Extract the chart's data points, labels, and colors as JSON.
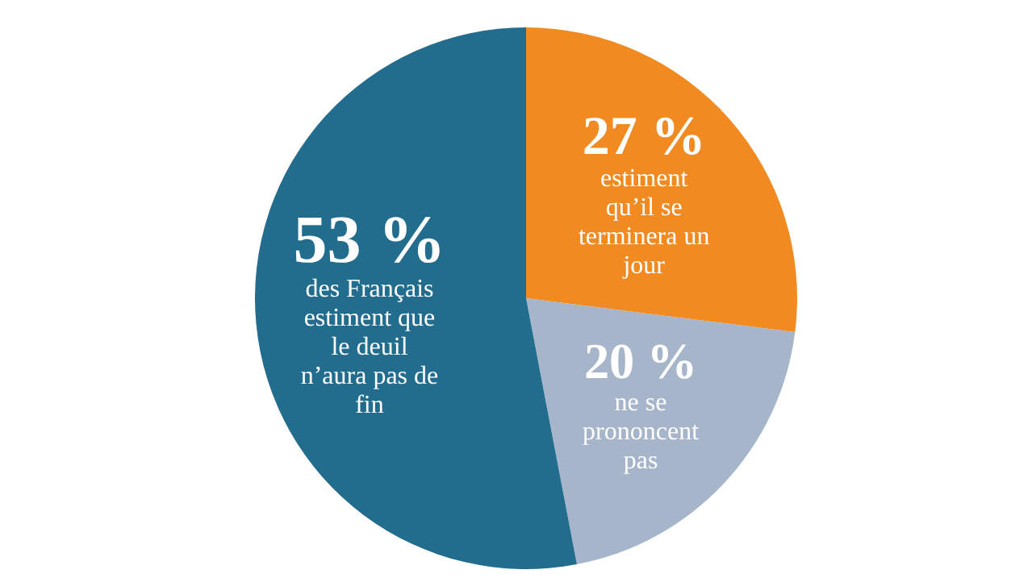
{
  "chart_data": {
    "type": "pie",
    "categories": [
      "estiment qu’il se terminera un jour",
      "ne se prononcent pas",
      "des Français estiment que le deuil n’aura pas de fin"
    ],
    "values": [
      27,
      20,
      53
    ],
    "value_labels": [
      "27 %",
      "20 %",
      "53 %"
    ],
    "colors": [
      "#f28a22",
      "#a6b5c9",
      "#226c8e"
    ],
    "legend": false
  }
}
